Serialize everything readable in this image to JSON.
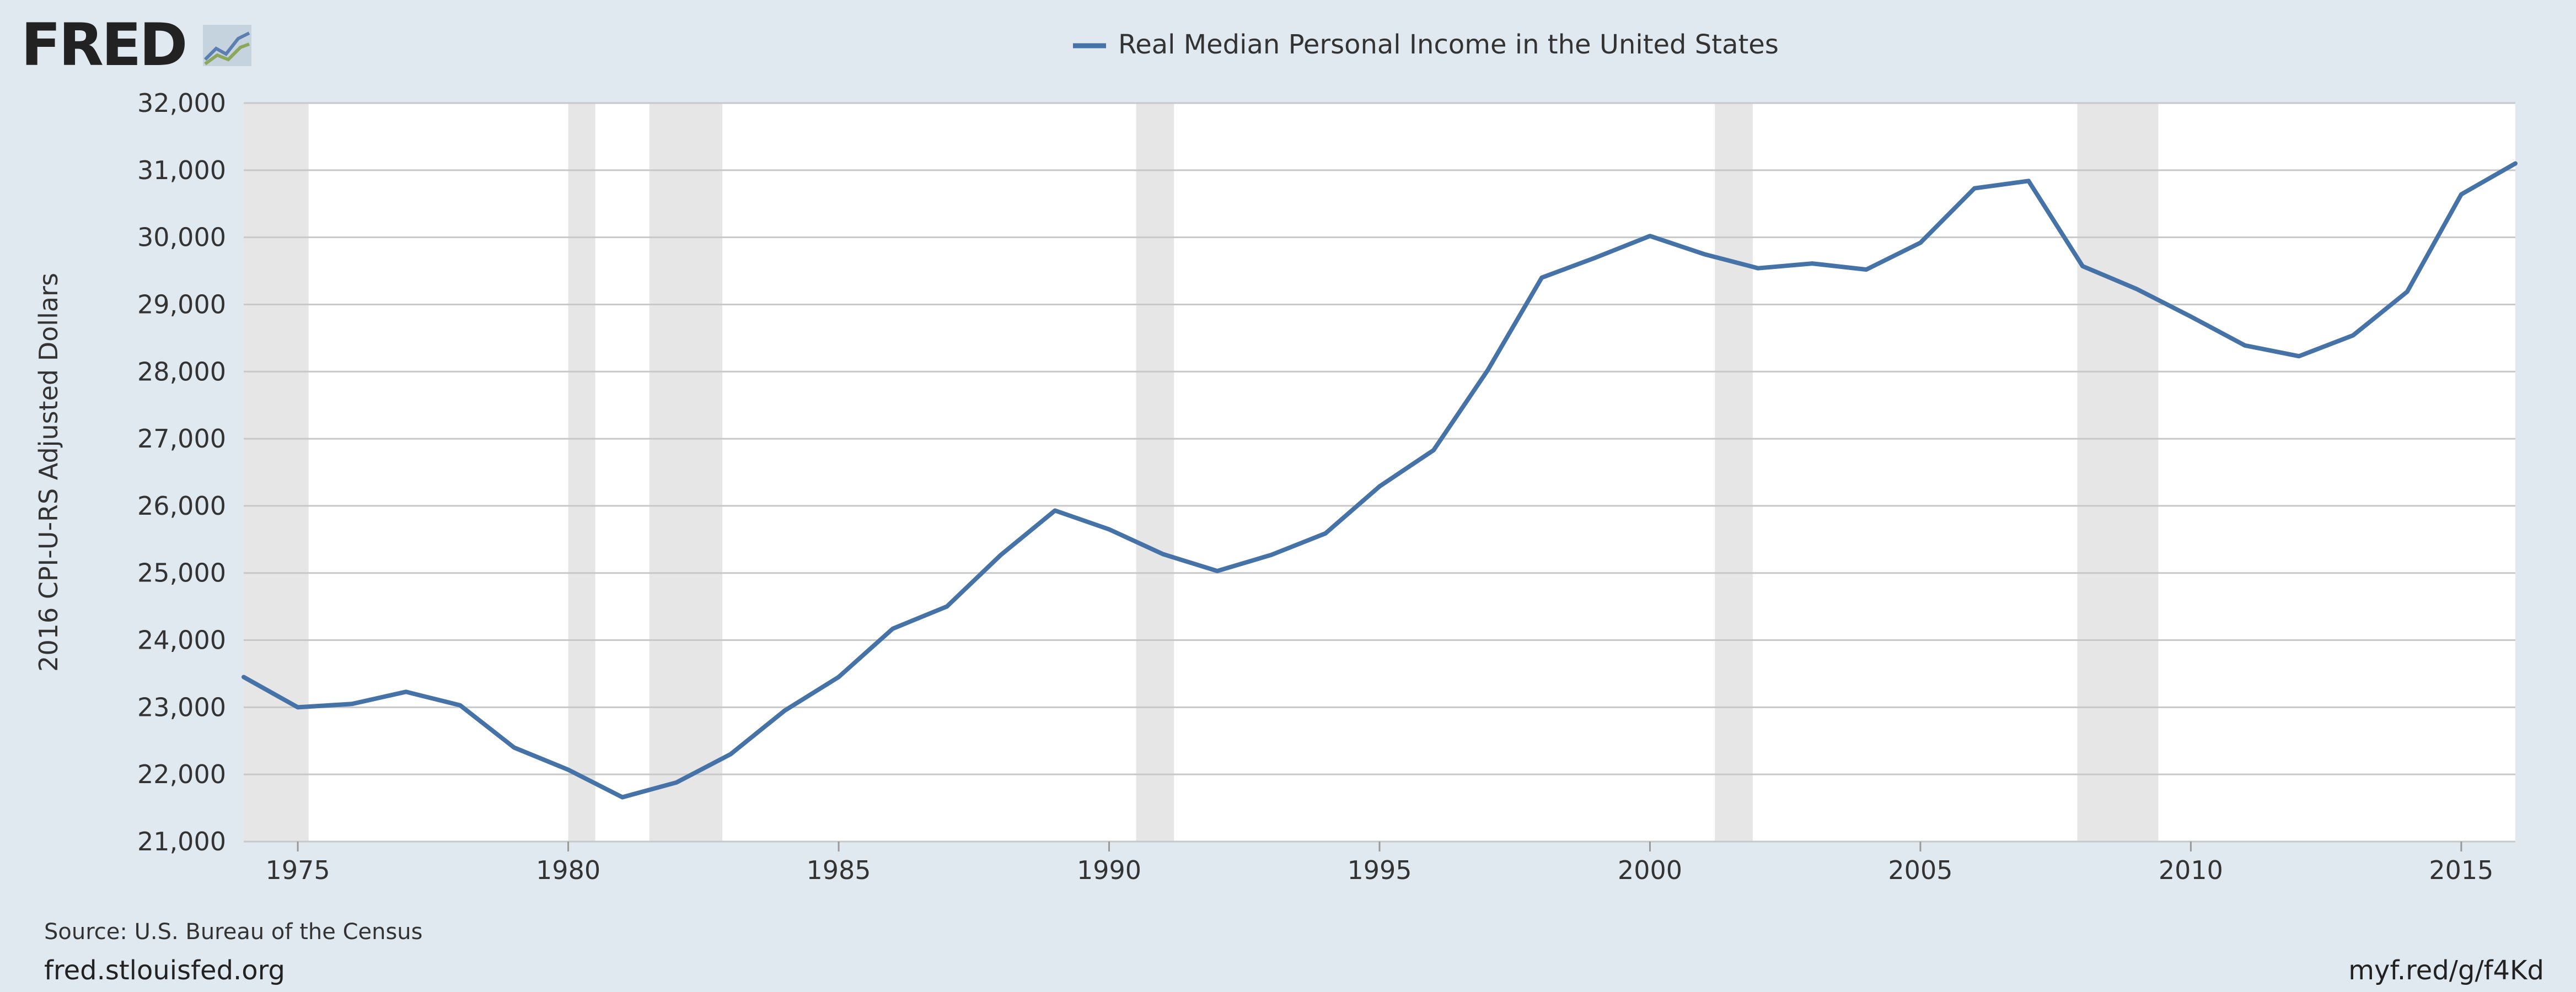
{
  "logo": {
    "text": "FRED"
  },
  "footer": {
    "source": "Source: U.S. Bureau of the Census",
    "site": "fred.stlouisfed.org",
    "short_url": "myf.red/g/f4Kd"
  },
  "chart_data": {
    "type": "line",
    "title": "",
    "ylabel": "2016 CPI-U-RS Adjusted Dollars",
    "xlabel": "",
    "xlim": [
      1974,
      2016
    ],
    "ylim": [
      21000,
      32000
    ],
    "x_ticks": [
      1975,
      1980,
      1985,
      1990,
      1995,
      2000,
      2005,
      2010,
      2015
    ],
    "y_ticks": [
      21000,
      22000,
      23000,
      24000,
      25000,
      26000,
      27000,
      28000,
      29000,
      30000,
      31000,
      32000
    ],
    "y_tick_labels": [
      "21,000",
      "22,000",
      "23,000",
      "24,000",
      "25,000",
      "26,000",
      "27,000",
      "28,000",
      "29,000",
      "30,000",
      "31,000",
      "32,000"
    ],
    "grid": true,
    "legend_position": "top-center",
    "colors": {
      "line": "#4572a7",
      "recession": "#e6e6e6",
      "plot_bg": "#ffffff",
      "grid": "#c8c8c8"
    },
    "recessions": [
      [
        1974.0,
        1975.2
      ],
      [
        1980.0,
        1980.5
      ],
      [
        1981.5,
        1982.85
      ],
      [
        1990.5,
        1991.2
      ],
      [
        2001.2,
        2001.9
      ],
      [
        2007.9,
        2009.4
      ]
    ],
    "series": [
      {
        "name": "Real Median Personal Income in the United States",
        "x": [
          1974,
          1975,
          1976,
          1977,
          1978,
          1979,
          1980,
          1981,
          1982,
          1983,
          1984,
          1985,
          1986,
          1987,
          1988,
          1989,
          1990,
          1991,
          1992,
          1993,
          1994,
          1995,
          1996,
          1997,
          1998,
          1999,
          2000,
          2001,
          2002,
          2003,
          2004,
          2005,
          2006,
          2007,
          2008,
          2009,
          2010,
          2011,
          2012,
          2013,
          2014,
          2015,
          2016
        ],
        "values": [
          23450,
          23000,
          23050,
          23230,
          23030,
          22400,
          22070,
          21660,
          21880,
          22300,
          22950,
          23450,
          24170,
          24500,
          25270,
          25930,
          25650,
          25280,
          25030,
          25270,
          25590,
          26290,
          26830,
          28020,
          29400,
          29700,
          30020,
          29750,
          29540,
          29610,
          29520,
          29920,
          30730,
          30840,
          29570,
          29230,
          28820,
          28390,
          28230,
          28540,
          29190,
          30640,
          31100
        ]
      }
    ]
  }
}
